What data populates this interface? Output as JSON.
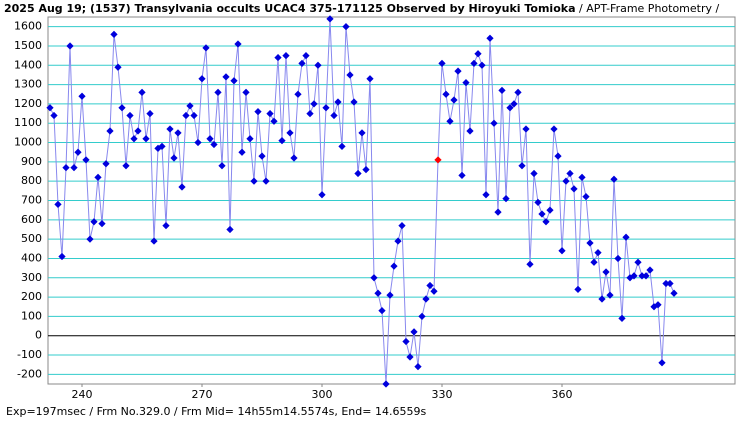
{
  "chart_data": {
    "type": "line",
    "title": "2025 Aug 19; (1537) Transylvania occults UCAC4 375-171125 Observed by Hiroyuki Tomioka",
    "subtitle": " / APT-Frame Photometry /",
    "footer": "Exp=197msec / Frm No.329.0 / Frm Mid= 14h55m14.5574s, End= 14.6559s",
    "x": [
      232,
      233,
      234,
      235,
      236,
      237,
      238,
      239,
      240,
      241,
      242,
      243,
      244,
      245,
      246,
      247,
      248,
      249,
      250,
      251,
      252,
      253,
      254,
      255,
      256,
      257,
      258,
      259,
      260,
      261,
      262,
      263,
      264,
      265,
      266,
      267,
      268,
      269,
      270,
      271,
      272,
      273,
      274,
      275,
      276,
      277,
      278,
      279,
      280,
      281,
      282,
      283,
      284,
      285,
      286,
      287,
      288,
      289,
      290,
      291,
      292,
      293,
      294,
      295,
      296,
      297,
      298,
      299,
      300,
      301,
      302,
      303,
      304,
      305,
      306,
      307,
      308,
      309,
      310,
      311,
      312,
      313,
      314,
      315,
      316,
      317,
      318,
      319,
      320,
      321,
      322,
      323,
      324,
      325,
      326,
      327,
      328,
      329,
      330,
      331,
      332,
      333,
      334,
      335,
      336,
      337,
      338,
      339,
      340,
      341,
      342,
      343,
      344,
      345,
      346,
      347,
      348,
      349,
      350,
      351,
      352,
      353,
      354,
      355,
      356,
      357,
      358,
      359,
      360,
      361,
      362,
      363,
      364,
      365,
      366,
      367,
      368,
      369,
      370,
      371,
      372,
      373,
      374,
      375,
      376,
      377,
      378,
      379,
      380,
      381,
      382,
      383,
      384,
      385,
      386,
      387,
      388
    ],
    "series": [
      {
        "color": "#0000dd",
        "line_color": "#8888ee",
        "values": [
          1180,
          1140,
          680,
          410,
          870,
          1500,
          870,
          950,
          1240,
          910,
          500,
          590,
          820,
          580,
          890,
          1060,
          1560,
          1390,
          1180,
          880,
          1140,
          1020,
          1060,
          1260,
          1020,
          1150,
          490,
          970,
          980,
          570,
          1070,
          920,
          1050,
          770,
          1140,
          1190,
          1140,
          1000,
          1330,
          1490,
          1020,
          990,
          1260,
          880,
          1340,
          550,
          1320,
          1510,
          950,
          1260,
          1020,
          800,
          1160,
          930,
          800,
          1150,
          1110,
          1440,
          1010,
          1450,
          1050,
          920,
          1250,
          1410,
          1450,
          1150,
          1200,
          1400,
          730,
          1180,
          1640,
          1140,
          1210,
          980,
          1600,
          1350,
          1210,
          840,
          1050,
          860,
          1330,
          300,
          220,
          130,
          -250,
          210,
          360,
          490,
          570,
          -30,
          -110,
          20,
          -160,
          100,
          190,
          260,
          230,
          910,
          1410,
          1250,
          1110,
          1220,
          1370,
          830,
          1310,
          1060,
          1410,
          1460,
          1400,
          730,
          1540,
          1100,
          640,
          1270,
          710,
          1180,
          1200,
          1260,
          880,
          1070,
          370,
          840,
          690,
          630,
          590,
          650,
          1070,
          930,
          440,
          800,
          840,
          760,
          240,
          820,
          720,
          480,
          380,
          430,
          190,
          330,
          210,
          810,
          400,
          90,
          510,
          300,
          310,
          380,
          310,
          310,
          340,
          150,
          160,
          -140,
          270,
          270,
          220
        ]
      }
    ],
    "highlight_x": 329,
    "highlight_color": "#ff0000",
    "xlim": [
      231.5,
      403.25
    ],
    "ylim": [
      -250,
      1650
    ],
    "xticks": [
      240,
      270,
      300,
      330,
      360
    ],
    "yticks": [
      -200,
      -100,
      0,
      100,
      200,
      300,
      400,
      500,
      600,
      700,
      800,
      900,
      1000,
      1100,
      1200,
      1300,
      1400,
      1500,
      1600
    ],
    "grid": true,
    "grid_color": "#33cccc"
  }
}
